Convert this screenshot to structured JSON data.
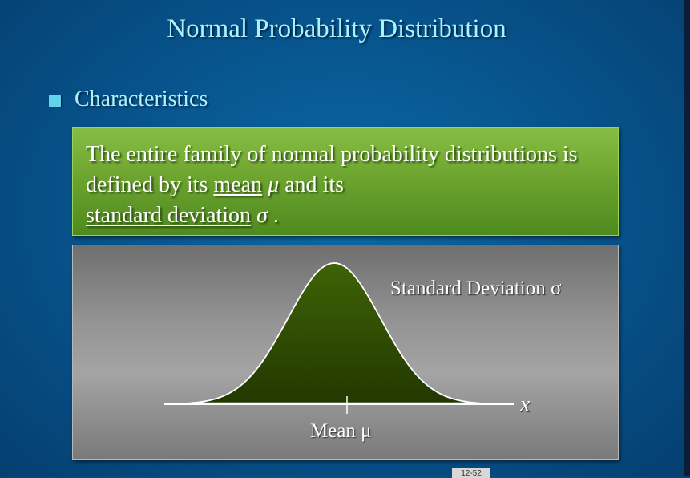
{
  "slide": {
    "title": "Normal Probability Distribution",
    "bullet_heading": "Characteristics",
    "definition": {
      "part1": "The entire family of normal probability distributions is defined by its ",
      "term_mean": "mean",
      "symbol_mu": "μ",
      "part2": " and its ",
      "term_sd": "standard deviation",
      "symbol_sigma": "σ",
      "part3": " ."
    },
    "diagram": {
      "sd_label": "Standard Deviation σ",
      "mean_label": "Mean μ",
      "axis_label": "x",
      "curve_color": "#2f4a00"
    },
    "page_number": "12-52"
  }
}
